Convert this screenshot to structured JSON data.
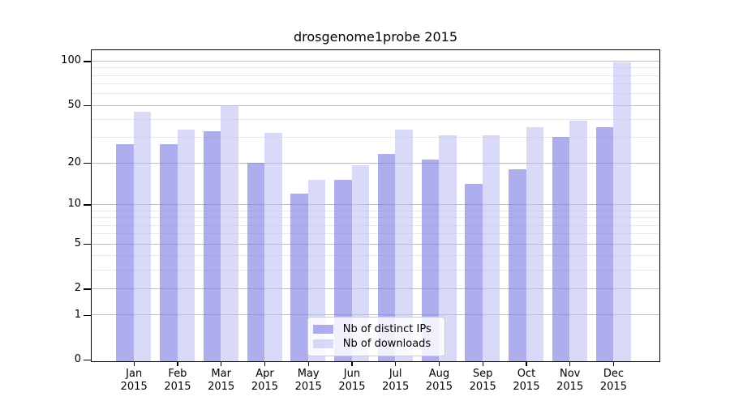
{
  "title": "drosgenome1probe 2015",
  "chart_data": {
    "type": "bar",
    "title": "drosgenome1probe 2015",
    "y_scale": "log1p",
    "ylim": [
      0,
      120
    ],
    "grid": "horizontal, major and minor log gridlines",
    "legend_position": "lower center inside plot",
    "categories": [
      {
        "month": "Jan",
        "year": "2015"
      },
      {
        "month": "Feb",
        "year": "2015"
      },
      {
        "month": "Mar",
        "year": "2015"
      },
      {
        "month": "Apr",
        "year": "2015"
      },
      {
        "month": "May",
        "year": "2015"
      },
      {
        "month": "Jun",
        "year": "2015"
      },
      {
        "month": "Jul",
        "year": "2015"
      },
      {
        "month": "Aug",
        "year": "2015"
      },
      {
        "month": "Sep",
        "year": "2015"
      },
      {
        "month": "Oct",
        "year": "2015"
      },
      {
        "month": "Nov",
        "year": "2015"
      },
      {
        "month": "Dec",
        "year": "2015"
      }
    ],
    "series": [
      {
        "name": "Nb of distinct IPs",
        "color_hex": "#aeaeef",
        "color_css": "rgba(124,124,229,0.62)",
        "values": [
          27,
          27,
          33,
          20,
          12,
          15,
          23,
          21,
          14,
          18,
          30,
          35
        ]
      },
      {
        "name": "Nb of downloads",
        "color_hex": "#d8d8f5",
        "color_css": "rgba(185,185,243,0.55)",
        "values": [
          45,
          34,
          50,
          32,
          15,
          19,
          34,
          31,
          31,
          35,
          39,
          97
        ]
      }
    ],
    "y_ticks": [
      0,
      1,
      2,
      5,
      10,
      20,
      50,
      100
    ],
    "y_minor_ticks": [
      3,
      4,
      6,
      7,
      8,
      9,
      30,
      40,
      60,
      70,
      80,
      90
    ]
  }
}
